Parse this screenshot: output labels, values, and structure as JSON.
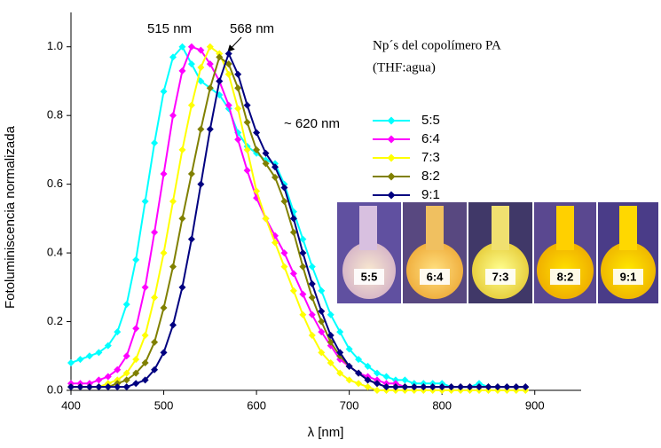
{
  "chart_data": {
    "type": "line",
    "x_label": "λ [nm]",
    "y_label": "Fotoluminiscencia normalizada",
    "xlim": [
      400,
      950
    ],
    "ylim": [
      0,
      1.1
    ],
    "xticks": [
      400,
      500,
      600,
      700,
      800,
      900
    ],
    "yticks": [
      {
        "value": 0,
        "label": "0.0"
      },
      {
        "value": 0.2,
        "label": "0.2"
      },
      {
        "value": 0.4,
        "label": "0.4"
      },
      {
        "value": 0.6,
        "label": "0.6"
      },
      {
        "value": 0.8,
        "label": "0.8"
      },
      {
        "value": 1,
        "label": "1.0"
      }
    ],
    "legend_title": [
      "Np´s del copolímero PA",
      "(THF:agua)"
    ],
    "annotations": [
      "515 nm",
      "568 nm",
      "~ 620 nm"
    ],
    "photo_labels": [
      "5:5",
      "6:4",
      "7:3",
      "8:2",
      "9:1"
    ],
    "x": [
      400,
      410,
      420,
      430,
      440,
      450,
      460,
      470,
      480,
      490,
      500,
      510,
      520,
      530,
      540,
      550,
      560,
      570,
      580,
      590,
      600,
      610,
      620,
      630,
      640,
      650,
      660,
      670,
      680,
      690,
      700,
      710,
      720,
      730,
      740,
      750,
      760,
      770,
      780,
      790,
      800,
      810,
      820,
      830,
      840,
      850,
      860,
      870,
      880,
      890
    ],
    "series": [
      {
        "name": "5:5",
        "color": "#00ffff",
        "values": [
          0.08,
          0.09,
          0.1,
          0.11,
          0.13,
          0.17,
          0.25,
          0.38,
          0.55,
          0.72,
          0.87,
          0.97,
          1.0,
          0.95,
          0.9,
          0.88,
          0.86,
          0.82,
          0.75,
          0.71,
          0.69,
          0.67,
          0.66,
          0.6,
          0.52,
          0.44,
          0.36,
          0.29,
          0.22,
          0.17,
          0.12,
          0.09,
          0.07,
          0.05,
          0.04,
          0.03,
          0.03,
          0.02,
          0.02,
          0.02,
          0.02,
          0.01,
          0.01,
          0.01,
          0.02,
          0.01,
          0.01,
          0.01,
          0.01,
          0.01
        ]
      },
      {
        "name": "6:4",
        "color": "#ff00ff",
        "values": [
          0.02,
          0.02,
          0.02,
          0.03,
          0.04,
          0.06,
          0.1,
          0.18,
          0.3,
          0.46,
          0.63,
          0.8,
          0.93,
          1.0,
          0.99,
          0.95,
          0.9,
          0.83,
          0.73,
          0.64,
          0.56,
          0.5,
          0.45,
          0.4,
          0.34,
          0.28,
          0.22,
          0.17,
          0.13,
          0.09,
          0.07,
          0.05,
          0.04,
          0.03,
          0.02,
          0.02,
          0.01,
          0.01,
          0.01,
          0.01,
          0.01,
          0.01,
          0.01,
          0.01,
          0.01,
          0.01,
          0.01,
          0.01,
          0.01,
          0.01
        ]
      },
      {
        "name": "7:3",
        "color": "#ffff00",
        "values": [
          0.01,
          0.01,
          0.01,
          0.01,
          0.02,
          0.03,
          0.05,
          0.09,
          0.16,
          0.27,
          0.4,
          0.55,
          0.7,
          0.83,
          0.94,
          1.0,
          0.98,
          0.92,
          0.82,
          0.7,
          0.58,
          0.5,
          0.43,
          0.36,
          0.29,
          0.22,
          0.16,
          0.11,
          0.08,
          0.05,
          0.03,
          0.02,
          0.01,
          0,
          0,
          0,
          0,
          0,
          0,
          0,
          0,
          0,
          0,
          0,
          0,
          0,
          0,
          0,
          0,
          0
        ]
      },
      {
        "name": "8:2",
        "color": "#808000",
        "values": [
          0.01,
          0.01,
          0.01,
          0.01,
          0.01,
          0.02,
          0.03,
          0.05,
          0.08,
          0.14,
          0.24,
          0.36,
          0.5,
          0.63,
          0.76,
          0.88,
          0.97,
          0.95,
          0.88,
          0.78,
          0.7,
          0.66,
          0.62,
          0.55,
          0.46,
          0.36,
          0.27,
          0.2,
          0.14,
          0.1,
          0.07,
          0.05,
          0.03,
          0.02,
          0.01,
          0.01,
          0.01,
          0.01,
          0.01,
          0.01,
          0.01,
          0.01,
          0.01,
          0.01,
          0.01,
          0.01,
          0.01,
          0.01,
          0.01,
          0.01
        ]
      },
      {
        "name": "9:1",
        "color": "#000080",
        "values": [
          0.01,
          0.01,
          0.01,
          0.01,
          0.01,
          0.01,
          0.01,
          0.02,
          0.03,
          0.06,
          0.11,
          0.19,
          0.3,
          0.44,
          0.6,
          0.76,
          0.9,
          0.98,
          0.92,
          0.83,
          0.75,
          0.69,
          0.65,
          0.59,
          0.5,
          0.4,
          0.31,
          0.23,
          0.16,
          0.11,
          0.07,
          0.05,
          0.03,
          0.02,
          0.01,
          0.01,
          0.01,
          0.01,
          0.01,
          0.01,
          0.01,
          0.01,
          0.01,
          0.01,
          0.01,
          0.01,
          0.01,
          0.01,
          0.01,
          0.01
        ]
      }
    ]
  }
}
